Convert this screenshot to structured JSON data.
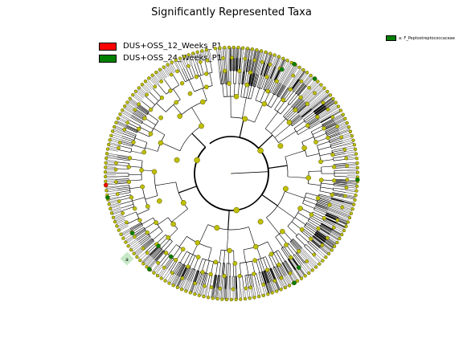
{
  "title": "Significantly Represented Taxa",
  "legend": [
    {
      "label": "DUS+OSS_12_Weeks_P1",
      "color": "#ff0000"
    },
    {
      "label": "DUS+OSS_24_Weeks_P1",
      "color": "#008000"
    }
  ],
  "side_legend": {
    "label": "a: F_Peptostreptococcaceae",
    "color": "#008000"
  },
  "marker_label": "a",
  "colors": {
    "node_default": "#bfbf00",
    "node_stroke": "#555500",
    "link": "#000000",
    "group1": "#ff0000",
    "group2": "#008000",
    "highlight": "#c6e8c6"
  }
}
